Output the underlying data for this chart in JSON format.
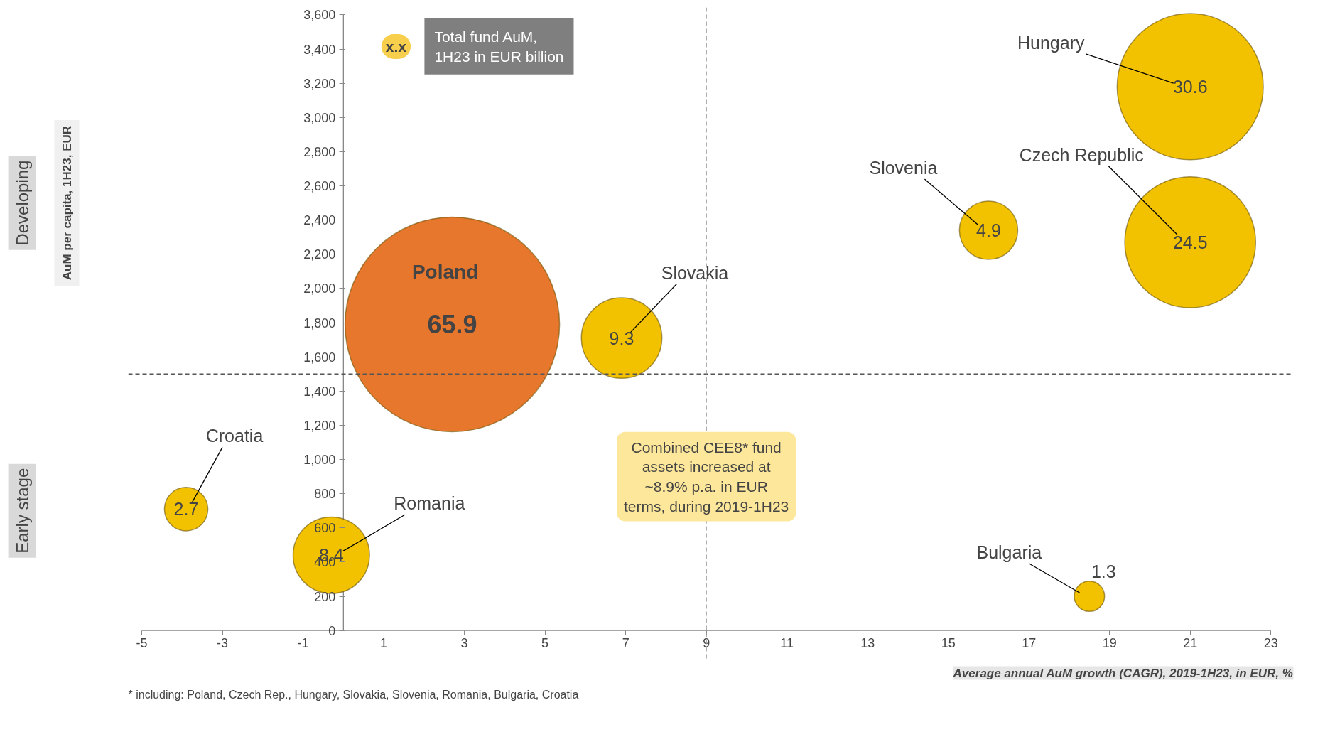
{
  "chart_data": {
    "type": "bubble",
    "xlabel": "Average annual AuM growth (CAGR), 2019-1H23, in EUR, %",
    "legend_title": "Total fund AuM, 1H23 in EUR billion",
    "x": [
      21.0,
      21.0,
      16.0,
      2.7,
      6.9,
      -3.9,
      -0.3,
      18.5
    ],
    "values": [
      3180,
      2270,
      2340,
      1790,
      1710,
      710,
      440,
      200
    ],
    "sizes": [
      0.464,
      0.372,
      0.074,
      1,
      0.141,
      0.041,
      0.127,
      0.02
    ],
    "colors": [
      "#f2c200",
      "#f2c200",
      "#f2c200",
      "#e8772e",
      "#f2c200",
      "#f2c200",
      "#f2c200",
      "#f2c200"
    ],
    "xlim": [
      -5,
      23
    ],
    "xticks": [
      -5,
      -3,
      -1,
      1,
      3,
      5,
      7,
      9,
      11,
      13,
      15,
      17,
      19,
      21,
      23
    ],
    "ylim": [
      0,
      3600
    ],
    "yticks": [
      0,
      200,
      400,
      600,
      800,
      {
        "value": 1000,
        "label": "1,000"
      },
      {
        "value": 1200,
        "label": "1,200"
      },
      {
        "value": 1400,
        "label": "1,400"
      },
      {
        "value": 1600,
        "label": "1,600"
      },
      {
        "value": 1800,
        "label": "1,800"
      },
      {
        "value": 2000,
        "label": "2,000"
      },
      {
        "value": 2200,
        "label": "2,200"
      },
      {
        "value": 2400,
        "label": "2,400"
      },
      {
        "value": 2600,
        "label": "2,600"
      },
      {
        "value": 2800,
        "label": "2,800"
      },
      {
        "value": 3000,
        "label": "3,000"
      },
      {
        "value": 3200,
        "label": "3,200"
      },
      {
        "value": 3400,
        "label": "3,400"
      },
      {
        "value": 3600,
        "label": "3,600"
      }
    ],
    "ref_lines": [
      {
        "axis": "y",
        "value": 1500,
        "color": "#555555",
        "line_style": "dashed"
      },
      {
        "axis": "x",
        "value": 9,
        "color": "#999999",
        "line_style": "dashed"
      }
    ],
    "annotations": [
      "Hungary",
      "Czech Republic",
      "Slovenia",
      "Poland",
      "Slovakia",
      "Croatia",
      "Romania",
      "Bulgaria",
      {
        "text": "30.6",
        "x": 21.0,
        "y": 3180
      },
      {
        "text": "24.5",
        "x": 21.0,
        "y": 2270
      },
      {
        "text": "4.9",
        "x": 16.0,
        "y": 2340
      },
      {
        "text": "65.9",
        "x": 2.7,
        "y": 1790
      },
      {
        "text": "9.3",
        "x": 6.9,
        "y": 1710
      },
      {
        "text": "2.7",
        "x": -3.9,
        "y": 710
      },
      {
        "text": "8.4",
        "x": -0.3,
        "y": 440
      },
      {
        "text": "1.3",
        "x": 18.5,
        "y": 200
      },
      "Combined CEE8* fund assets increased at ~8.9% p.a. in EUR terms, during 2019-1H23",
      "x.x",
      "Developing",
      "Early stage",
      "* including: Poland, Czech Rep., Hungary, Slovakia, Slovenia, Romania, Bulgaria, Croatia",
      "AuM per capita, 1H23, EUR"
    ],
    "marker": "circle",
    "grid": false
  }
}
